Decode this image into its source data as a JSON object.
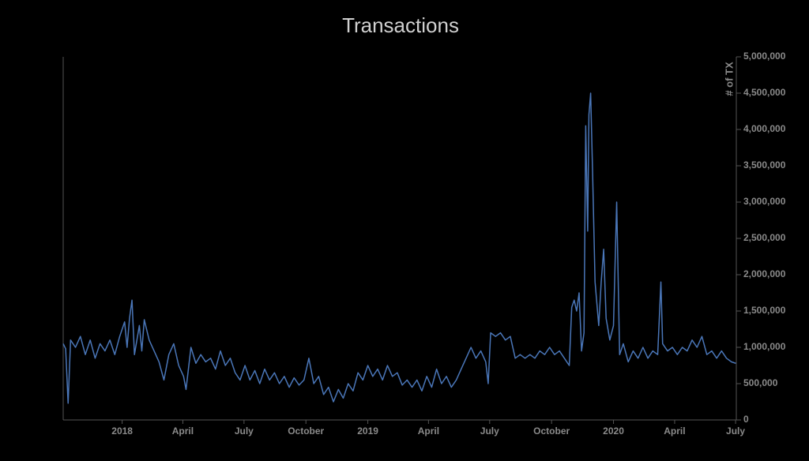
{
  "chart_data": {
    "type": "line",
    "title": "Transactions",
    "y_label": "# of TX",
    "y_axis_side": "right",
    "color": "#4a76b8",
    "x": [
      2017.76,
      2017.77,
      2017.78,
      2017.79,
      2017.81,
      2017.83,
      2017.85,
      2017.87,
      2017.89,
      2017.91,
      2017.93,
      2017.95,
      2017.97,
      2017.99,
      2018.01,
      2018.02,
      2018.03,
      2018.04,
      2018.05,
      2018.07,
      2018.08,
      2018.09,
      2018.11,
      2018.13,
      2018.15,
      2018.17,
      2018.19,
      2018.21,
      2018.23,
      2018.25,
      2018.26,
      2018.28,
      2018.3,
      2018.32,
      2018.34,
      2018.36,
      2018.38,
      2018.4,
      2018.42,
      2018.44,
      2018.46,
      2018.48,
      2018.5,
      2018.52,
      2018.54,
      2018.56,
      2018.58,
      2018.6,
      2018.62,
      2018.64,
      2018.66,
      2018.68,
      2018.7,
      2018.72,
      2018.74,
      2018.76,
      2018.78,
      2018.8,
      2018.82,
      2018.84,
      2018.86,
      2018.88,
      2018.9,
      2018.92,
      2018.94,
      2018.96,
      2018.98,
      2019.0,
      2019.02,
      2019.04,
      2019.06,
      2019.08,
      2019.1,
      2019.12,
      2019.14,
      2019.16,
      2019.18,
      2019.2,
      2019.22,
      2019.24,
      2019.26,
      2019.28,
      2019.3,
      2019.32,
      2019.34,
      2019.36,
      2019.38,
      2019.4,
      2019.42,
      2019.44,
      2019.46,
      2019.48,
      2019.49,
      2019.5,
      2019.52,
      2019.54,
      2019.56,
      2019.58,
      2019.6,
      2019.62,
      2019.64,
      2019.66,
      2019.68,
      2019.7,
      2019.72,
      2019.74,
      2019.76,
      2019.78,
      2019.8,
      2019.82,
      2019.83,
      2019.84,
      2019.85,
      2019.86,
      2019.87,
      2019.88,
      2019.887,
      2019.895,
      2019.9,
      2019.907,
      2019.915,
      2019.925,
      2019.94,
      2019.95,
      2019.96,
      2019.97,
      2019.985,
      2020.0,
      2020.013,
      2020.025,
      2020.04,
      2020.06,
      2020.08,
      2020.1,
      2020.12,
      2020.14,
      2020.16,
      2020.18,
      2020.193,
      2020.2,
      2020.22,
      2020.24,
      2020.26,
      2020.28,
      2020.3,
      2020.32,
      2020.34,
      2020.36,
      2020.38,
      2020.4,
      2020.42,
      2020.44,
      2020.46,
      2020.48,
      2020.498
    ],
    "values": [
      1050000,
      980000,
      230000,
      1100000,
      1000000,
      1150000,
      900000,
      1100000,
      850000,
      1050000,
      950000,
      1100000,
      900000,
      1150000,
      1350000,
      1000000,
      1400000,
      1650000,
      900000,
      1300000,
      950000,
      1380000,
      1100000,
      950000,
      800000,
      550000,
      900000,
      1050000,
      750000,
      600000,
      420000,
      1000000,
      780000,
      900000,
      800000,
      850000,
      700000,
      950000,
      750000,
      850000,
      650000,
      550000,
      750000,
      550000,
      680000,
      500000,
      700000,
      550000,
      650000,
      500000,
      600000,
      450000,
      580000,
      480000,
      550000,
      850000,
      500000,
      600000,
      350000,
      450000,
      250000,
      420000,
      300000,
      500000,
      400000,
      650000,
      550000,
      750000,
      600000,
      700000,
      550000,
      750000,
      600000,
      650000,
      480000,
      550000,
      450000,
      550000,
      400000,
      600000,
      450000,
      700000,
      500000,
      600000,
      450000,
      550000,
      700000,
      850000,
      1000000,
      850000,
      950000,
      800000,
      500000,
      1200000,
      1150000,
      1200000,
      1100000,
      1150000,
      850000,
      900000,
      850000,
      900000,
      850000,
      950000,
      900000,
      1000000,
      900000,
      950000,
      850000,
      750000,
      1550000,
      1650000,
      1500000,
      1750000,
      950000,
      1200000,
      4050000,
      2600000,
      4200000,
      4500000,
      3400000,
      1900000,
      1300000,
      1900000,
      2350000,
      1400000,
      1100000,
      1300000,
      3000000,
      900000,
      1050000,
      800000,
      950000,
      850000,
      1000000,
      850000,
      950000,
      900000,
      1900000,
      1050000,
      950000,
      1000000,
      900000,
      1000000,
      950000,
      1100000,
      1000000,
      1150000,
      900000,
      950000,
      850000,
      950000,
      850000,
      800000,
      780000
    ],
    "xlim": [
      2017.76,
      2020.5
    ],
    "xticks": [
      {
        "value": 2018,
        "label": "2018"
      },
      {
        "value": 2018.247,
        "label": "April"
      },
      {
        "value": 2018.496,
        "label": "July"
      },
      {
        "value": 2018.748,
        "label": "October"
      },
      {
        "value": 2019,
        "label": "2019"
      },
      {
        "value": 2019.247,
        "label": "April"
      },
      {
        "value": 2019.496,
        "label": "July"
      },
      {
        "value": 2019.748,
        "label": "October"
      },
      {
        "value": 2020,
        "label": "2020"
      },
      {
        "value": 2020.249,
        "label": "April"
      },
      {
        "value": 2020.497,
        "label": "July"
      }
    ],
    "ylim": [
      0,
      5000000
    ],
    "yticks": [
      0,
      {
        "value": 500000,
        "label": "500,000"
      },
      {
        "value": 1000000,
        "label": "1,000,000"
      },
      {
        "value": 1500000,
        "label": "1,500,000"
      },
      {
        "value": 2000000,
        "label": "2,000,000"
      },
      {
        "value": 2500000,
        "label": "2,500,000"
      },
      {
        "value": 3000000,
        "label": "3,000,000"
      },
      {
        "value": 3500000,
        "label": "3,500,000"
      },
      {
        "value": 4000000,
        "label": "4,000,000"
      },
      {
        "value": 4500000,
        "label": "4,500,000"
      },
      {
        "value": 5000000,
        "label": "5,000,000"
      }
    ],
    "grid": false
  }
}
